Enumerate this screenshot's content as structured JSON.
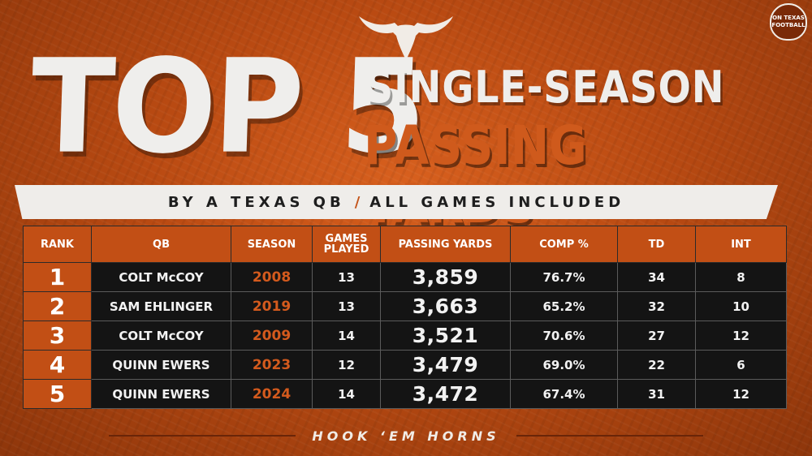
{
  "brand": {
    "line1": "ON TEXAS",
    "line2": "FOOTBALL",
    "logo_icon": "longhorn-icon"
  },
  "title": {
    "big": "TOP 5",
    "line1": "SINGLE-SEASON",
    "line2": "PASSING YARDS"
  },
  "subtitle": {
    "left": "BY A TEXAS QB",
    "separator": "/",
    "right": "ALL GAMES INCLUDED"
  },
  "table": {
    "headers": [
      "RANK",
      "QB",
      "SEASON",
      "GAMES PLAYED",
      "PASSING YARDS",
      "COMP %",
      "TD",
      "INT"
    ],
    "rows": [
      [
        "1",
        "COLT McCOY",
        "2008",
        "13",
        "3,859",
        "76.7%",
        "34",
        "8"
      ],
      [
        "2",
        "SAM EHLINGER",
        "2019",
        "13",
        "3,663",
        "65.2%",
        "32",
        "10"
      ],
      [
        "3",
        "COLT McCOY",
        "2009",
        "14",
        "3,521",
        "70.6%",
        "27",
        "12"
      ],
      [
        "4",
        "QUINN EWERS",
        "2023",
        "12",
        "3,479",
        "69.0%",
        "22",
        "6"
      ],
      [
        "5",
        "QUINN EWERS",
        "2024",
        "14",
        "3,472",
        "67.4%",
        "31",
        "12"
      ]
    ]
  },
  "footer": {
    "text": "HOOK ‘EM HORNS"
  },
  "colors": {
    "accent": "#c24f15",
    "background": "#b94a12",
    "cell": "#141414",
    "text": "#efeeec"
  }
}
